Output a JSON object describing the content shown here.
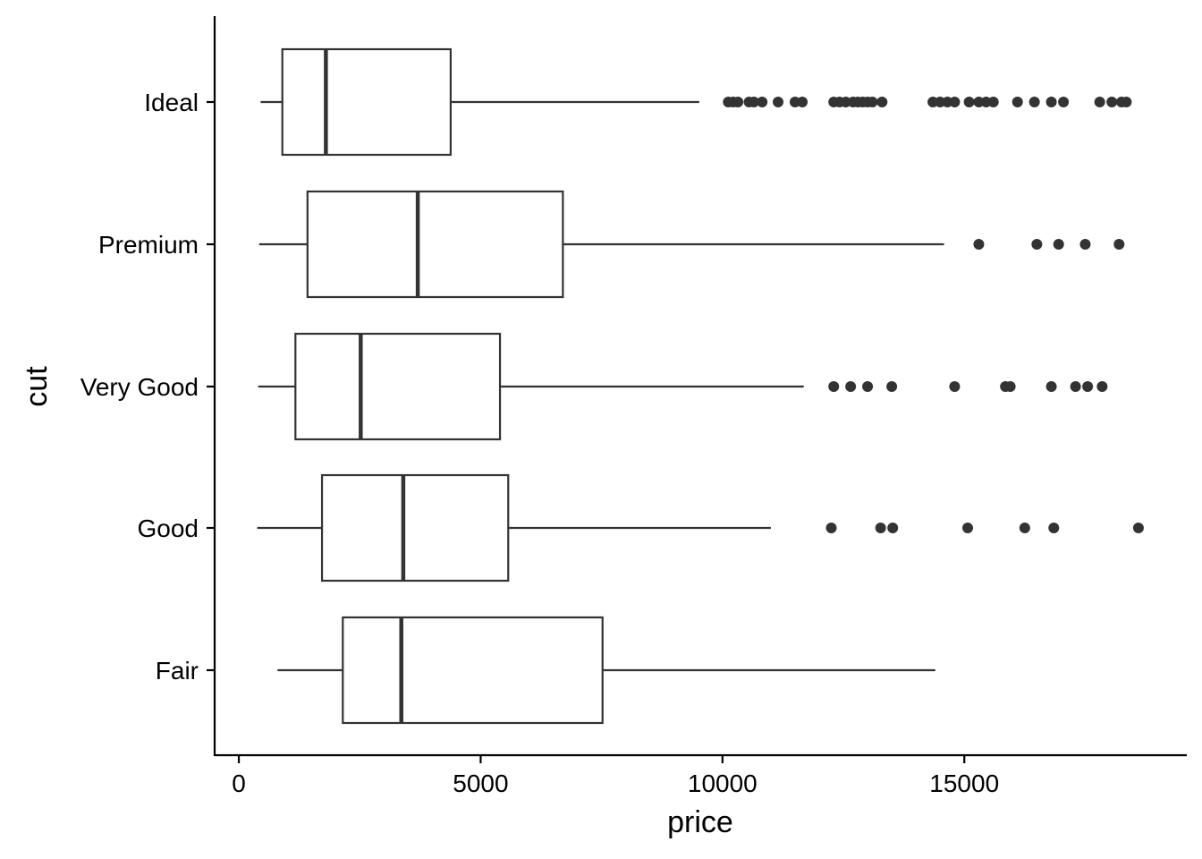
{
  "chart_data": {
    "type": "boxplot",
    "orientation": "horizontal",
    "xlabel": "price",
    "ylabel": "cut",
    "xlim": [
      -500,
      19600
    ],
    "x_ticks": [
      0,
      5000,
      10000,
      15000
    ],
    "x_tick_labels": [
      "0",
      "5000",
      "10000",
      "15000"
    ],
    "grid": false,
    "colors": {
      "box_fill": "#ffffff",
      "line": "#333333",
      "point": "#333333",
      "axis": "#000000"
    },
    "categories": [
      "Ideal",
      "Premium",
      "Very Good",
      "Good",
      "Fair"
    ],
    "boxes": [
      {
        "category": "Ideal",
        "min": 450,
        "q1": 900,
        "median": 1800,
        "q3": 4380,
        "max": 9520,
        "outliers": [
          10120,
          10220,
          10320,
          10550,
          10650,
          10820,
          11150,
          11500,
          11650,
          12300,
          12420,
          12550,
          12700,
          12800,
          12900,
          13000,
          13100,
          13300,
          14350,
          14500,
          14650,
          14800,
          15100,
          15300,
          15450,
          15600,
          16100,
          16450,
          16800,
          17050,
          17800,
          18050,
          18250,
          18350
        ]
      },
      {
        "category": "Premium",
        "min": 420,
        "q1": 1420,
        "median": 3700,
        "q3": 6700,
        "max": 14580,
        "outliers": [
          15300,
          16500,
          16950,
          17500,
          18200
        ]
      },
      {
        "category": "Very Good",
        "min": 400,
        "q1": 1170,
        "median": 2520,
        "q3": 5400,
        "max": 11680,
        "outliers": [
          12300,
          12650,
          13000,
          13500,
          14800,
          15850,
          15950,
          16800,
          17300,
          17550,
          17850
        ]
      },
      {
        "category": "Good",
        "min": 380,
        "q1": 1720,
        "median": 3400,
        "q3": 5570,
        "max": 11000,
        "outliers": [
          12250,
          13270,
          13520,
          15070,
          16250,
          16850,
          18600
        ]
      },
      {
        "category": "Fair",
        "min": 800,
        "q1": 2150,
        "median": 3360,
        "q3": 7520,
        "max": 14400,
        "outliers": []
      }
    ]
  }
}
